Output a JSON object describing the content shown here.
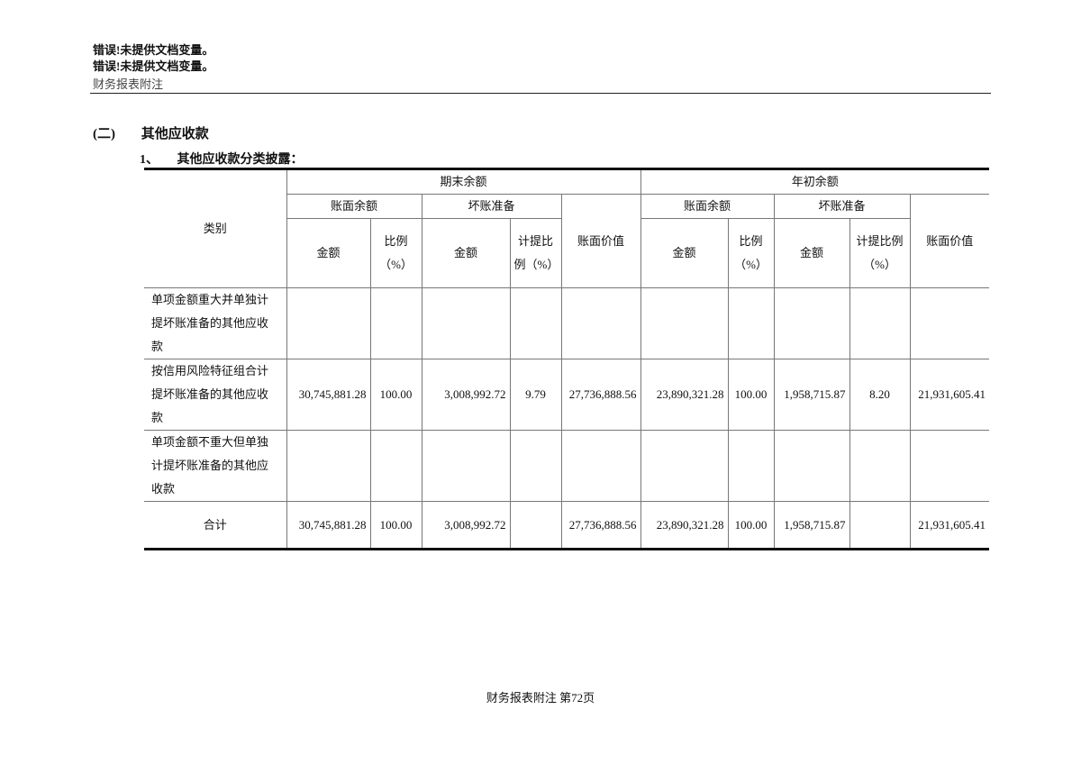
{
  "header": {
    "line1": "错误!未提供文档变量。",
    "line2": "错误!未提供文档变量。",
    "line3": "财务报表附注"
  },
  "section": {
    "number": "(二)",
    "title": "其他应收款"
  },
  "subsection": {
    "number": "1、",
    "title": "其他应收款分类披露："
  },
  "table": {
    "category_header": "类别",
    "period_end": "期末余额",
    "period_begin": "年初余额",
    "book_balance": "账面余额",
    "bad_debt": "坏账准备",
    "book_value": "账面价值",
    "amount": "金额",
    "ratio": "比例（%）",
    "provision_ratio": "计提比例（%）",
    "rows": [
      {
        "category": "单项金额重大并单独计提坏账准备的其他应收款",
        "cells": [
          "",
          "",
          "",
          "",
          "",
          "",
          "",
          "",
          "",
          ""
        ]
      },
      {
        "category": "按信用风险特征组合计提坏账准备的其他应收款",
        "cells": [
          "30,745,881.28",
          "100.00",
          "3,008,992.72",
          "9.79",
          "27,736,888.56",
          "23,890,321.28",
          "100.00",
          "1,958,715.87",
          "8.20",
          "21,931,605.41"
        ]
      },
      {
        "category": "单项金额不重大但单独计提坏账准备的其他应收款",
        "cells": [
          "",
          "",
          "",
          "",
          "",
          "",
          "",
          "",
          "",
          ""
        ]
      },
      {
        "category": "合计",
        "cells": [
          "30,745,881.28",
          "100.00",
          "3,008,992.72",
          "",
          "27,736,888.56",
          "23,890,321.28",
          "100.00",
          "1,958,715.87",
          "",
          "21,931,605.41"
        ]
      }
    ]
  },
  "footer": {
    "text": "财务报表附注 第72页"
  }
}
